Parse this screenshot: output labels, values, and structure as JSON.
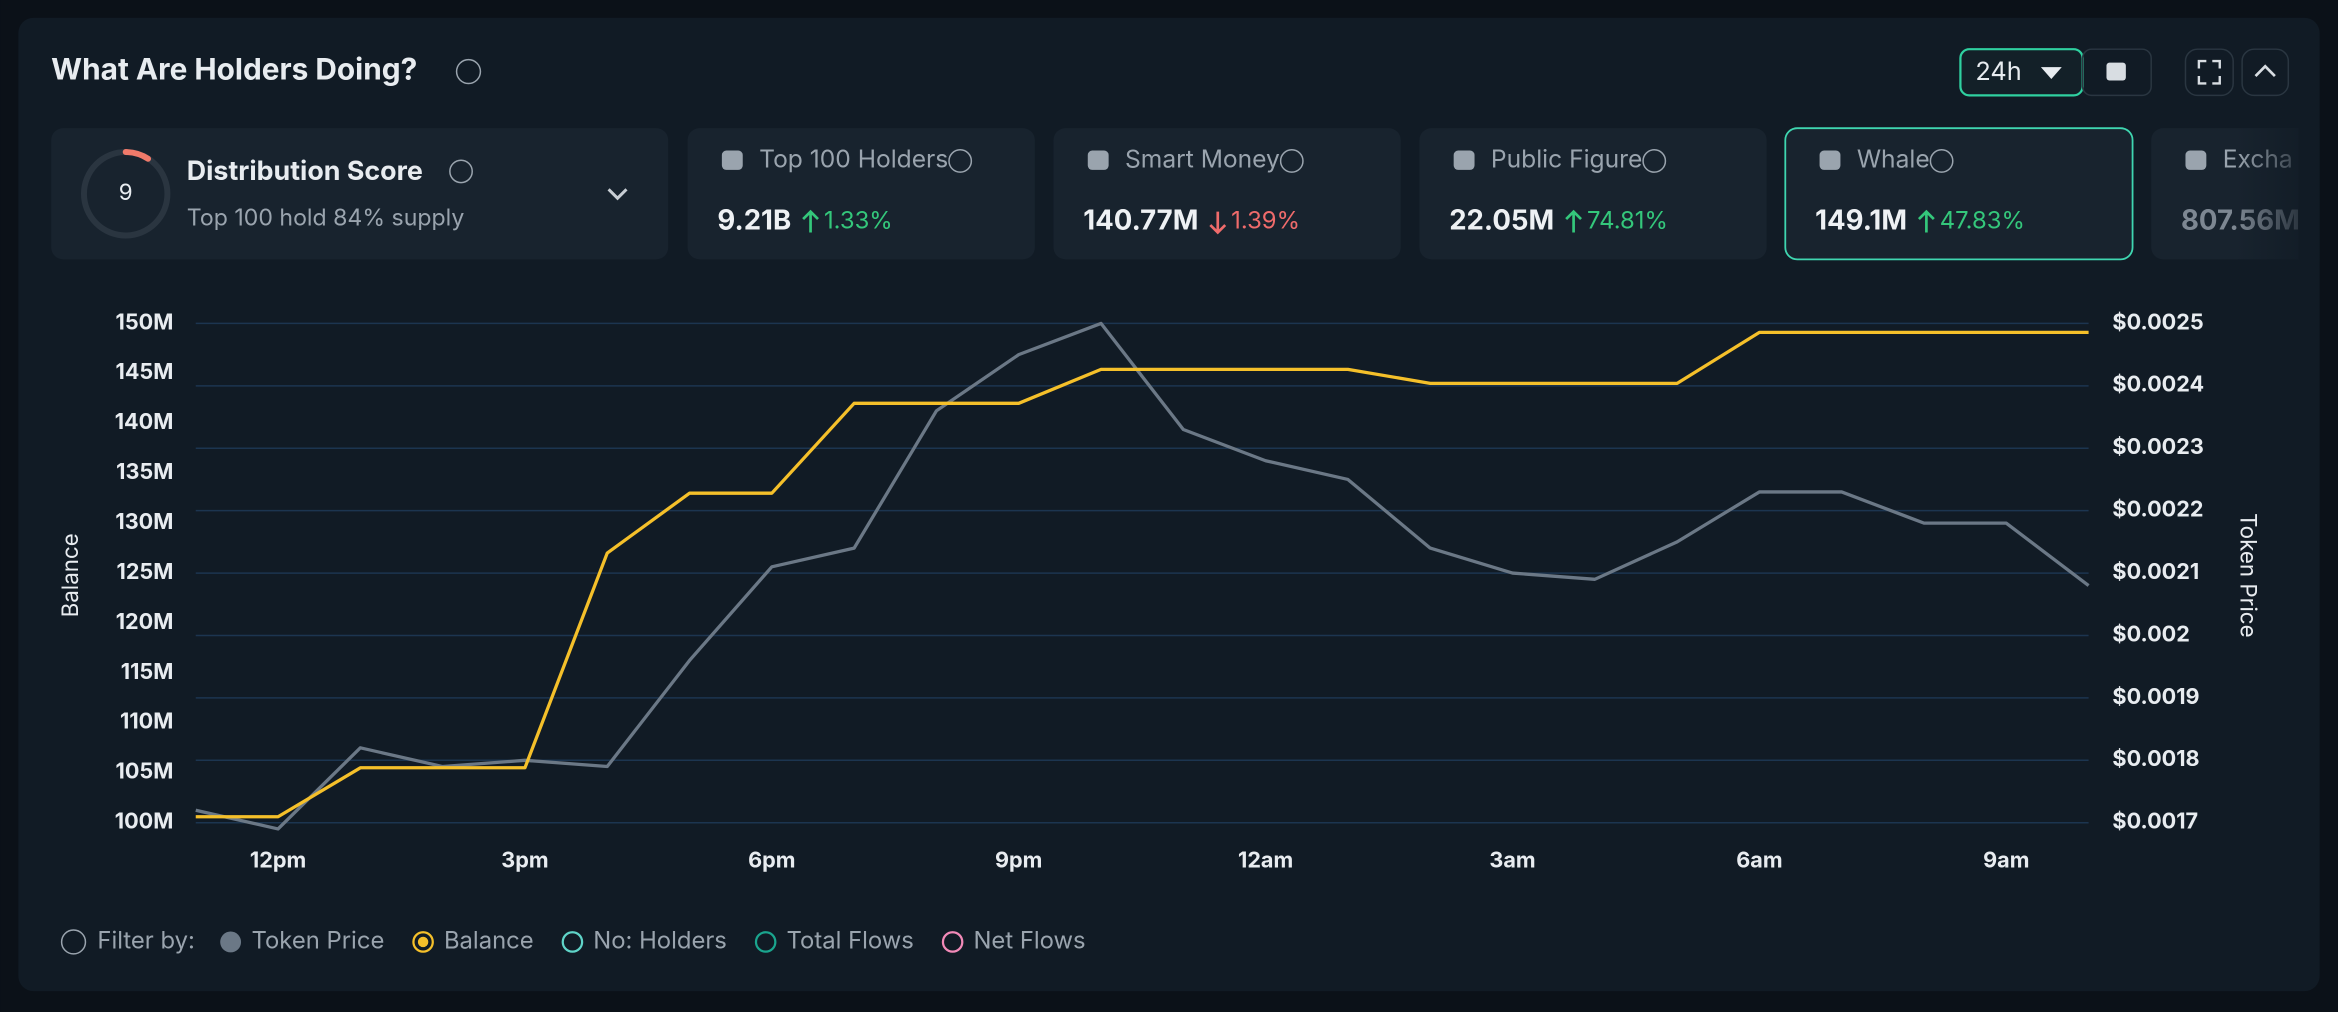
{
  "header": {
    "title": "What Are Holders Doing?",
    "range": "24h"
  },
  "distribution": {
    "score": "9",
    "title": "Distribution Score",
    "subtitle": "Top 100 hold 84% supply"
  },
  "cards": [
    {
      "label": "Top 100 Holders",
      "value": "9.21B",
      "change": "1.33%",
      "direction": "up"
    },
    {
      "label": "Smart Money",
      "value": "140.77M",
      "change": "1.39%",
      "direction": "down"
    },
    {
      "label": "Public Figure",
      "value": "22.05M",
      "change": "74.81%",
      "direction": "up"
    },
    {
      "label": "Whale",
      "value": "149.1M",
      "change": "47.83%",
      "direction": "up",
      "selected": true
    },
    {
      "label": "Excha",
      "value": "807.56M"
    }
  ],
  "chart_data": {
    "type": "line",
    "categories": [
      null,
      "12pm",
      null,
      null,
      "3pm",
      null,
      null,
      "6pm",
      null,
      null,
      "9pm",
      null,
      null,
      "12am",
      null,
      null,
      "3am",
      null,
      null,
      "6am",
      null,
      null,
      "9am",
      null
    ],
    "series": [
      {
        "name": "Token Price",
        "color": "#6b7886",
        "axis": "y2",
        "values": [
          0.00172,
          0.00169,
          0.00182,
          0.00179,
          0.0018,
          0.00179,
          0.00196,
          0.00211,
          0.00214,
          0.00236,
          0.00245,
          0.0025,
          0.00233,
          0.00228,
          0.00225,
          0.00214,
          0.0021,
          0.00209,
          0.00215,
          0.00223,
          0.00223,
          0.00218,
          0.00218,
          0.00208
        ]
      },
      {
        "name": "Balance",
        "color": "#f5c02a",
        "values": [
          100.6,
          100.6,
          105.5,
          105.5,
          105.5,
          127,
          133,
          133,
          142,
          142,
          142,
          145.4,
          145.4,
          145.4,
          145.4,
          144,
          144,
          144,
          144,
          149.1,
          149.1,
          149.1,
          149.1,
          149.1
        ]
      }
    ],
    "ylabel": "Balance",
    "y2label": "Token Price",
    "ylim": [
      100,
      150
    ],
    "yticks": [
      {
        "value": 100,
        "label": "100M"
      },
      {
        "value": 105,
        "label": "105M"
      },
      {
        "value": 110,
        "label": "110M"
      },
      {
        "value": 115,
        "label": "115M"
      },
      {
        "value": 120,
        "label": "120M"
      },
      {
        "value": 125,
        "label": "125M"
      },
      {
        "value": 130,
        "label": "130M"
      },
      {
        "value": 135,
        "label": "135M"
      },
      {
        "value": 140,
        "label": "140M"
      },
      {
        "value": 145,
        "label": "145M"
      },
      {
        "value": 150,
        "label": "150M"
      }
    ],
    "y2lim": [
      0.0017,
      0.0025
    ],
    "y2ticks": [
      {
        "value": 0.0017,
        "label": "$0.0017"
      },
      {
        "value": 0.0018,
        "label": "$0.0018"
      },
      {
        "value": 0.0019,
        "label": "$0.0019"
      },
      {
        "value": 0.002,
        "label": "$0.002"
      },
      {
        "value": 0.0021,
        "label": "$0.0021"
      },
      {
        "value": 0.0022,
        "label": "$0.0022"
      },
      {
        "value": 0.0023,
        "label": "$0.0023"
      },
      {
        "value": 0.0024,
        "label": "$0.0024"
      },
      {
        "value": 0.0025,
        "label": "$0.0025"
      }
    ],
    "grid": true
  },
  "filters": {
    "label": "Filter by:",
    "items": [
      {
        "label": "Token Price",
        "color": "#6b7886",
        "state": "filled"
      },
      {
        "label": "Balance",
        "color": "#f5c02a",
        "state": "selected"
      },
      {
        "label": "No: Holders",
        "color": "#5fd4c8",
        "state": "outline"
      },
      {
        "label": "Total Flows",
        "color": "#1aa58e",
        "state": "outline"
      },
      {
        "label": "Net Flows",
        "color": "#f28ab8",
        "state": "outline"
      }
    ]
  }
}
